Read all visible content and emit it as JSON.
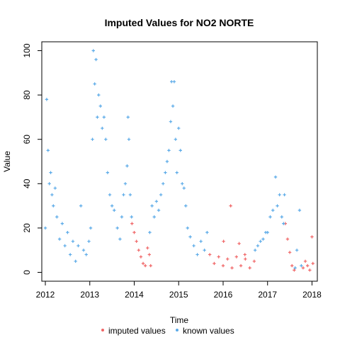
{
  "chart_data": {
    "type": "scatter",
    "title": "Imputed Values for  NO2 NORTE",
    "xlabel": "Time",
    "ylabel": "Value",
    "xlim": [
      2011.92,
      2018.12
    ],
    "ylim": [
      -4,
      104
    ],
    "x_ticks": [
      2012,
      2013,
      2014,
      2015,
      2016,
      2017,
      2018
    ],
    "x_tick_labels": [
      "2012",
      "2013",
      "2014",
      "2015",
      "2016",
      "2017",
      "2018"
    ],
    "y_ticks": [
      0,
      20,
      40,
      60,
      80,
      100
    ],
    "y_tick_labels": [
      "0",
      "20",
      "40",
      "60",
      "80",
      "100"
    ],
    "grid": false,
    "legend_position": "bottom",
    "series": [
      {
        "name": "imputed values",
        "color": "#F06566",
        "marker": "cross",
        "points": [
          [
            2013.95,
            22
          ],
          [
            2014.0,
            18
          ],
          [
            2014.05,
            14
          ],
          [
            2014.1,
            10
          ],
          [
            2014.15,
            7
          ],
          [
            2014.2,
            4
          ],
          [
            2014.25,
            3
          ],
          [
            2014.3,
            11
          ],
          [
            2014.34,
            8
          ],
          [
            2014.37,
            3
          ],
          [
            2015.7,
            8
          ],
          [
            2015.8,
            4
          ],
          [
            2015.9,
            7
          ],
          [
            2016.0,
            3
          ],
          [
            2016.1,
            6
          ],
          [
            2016.2,
            2
          ],
          [
            2016.3,
            7
          ],
          [
            2016.4,
            3
          ],
          [
            2016.5,
            6
          ],
          [
            2016.6,
            2
          ],
          [
            2016.7,
            5
          ],
          [
            2016.01,
            14
          ],
          [
            2016.17,
            30
          ],
          [
            2016.36,
            13
          ],
          [
            2016.49,
            8
          ],
          [
            2017.4,
            22
          ],
          [
            2017.45,
            15
          ],
          [
            2017.5,
            9
          ],
          [
            2017.55,
            3
          ],
          [
            2017.6,
            1
          ],
          [
            2017.8,
            2
          ],
          [
            2017.85,
            5
          ],
          [
            2017.9,
            3
          ],
          [
            2017.95,
            1
          ],
          [
            2018.0,
            16
          ],
          [
            2018.02,
            4
          ]
        ]
      },
      {
        "name": "known values",
        "color": "#5AAAE8",
        "marker": "cross",
        "points": [
          [
            2012.0,
            20
          ],
          [
            2012.03,
            78
          ],
          [
            2012.06,
            55
          ],
          [
            2012.09,
            40
          ],
          [
            2012.12,
            45
          ],
          [
            2012.15,
            35
          ],
          [
            2012.18,
            30
          ],
          [
            2012.22,
            38
          ],
          [
            2012.26,
            25
          ],
          [
            2012.32,
            15
          ],
          [
            2012.38,
            22
          ],
          [
            2012.44,
            12
          ],
          [
            2012.5,
            18
          ],
          [
            2012.56,
            8
          ],
          [
            2012.62,
            14
          ],
          [
            2012.68,
            5
          ],
          [
            2012.74,
            12
          ],
          [
            2012.8,
            30
          ],
          [
            2012.86,
            10
          ],
          [
            2012.92,
            8
          ],
          [
            2012.98,
            14
          ],
          [
            2013.02,
            20
          ],
          [
            2013.06,
            60
          ],
          [
            2013.08,
            100
          ],
          [
            2013.11,
            85
          ],
          [
            2013.14,
            96
          ],
          [
            2013.17,
            70
          ],
          [
            2013.2,
            80
          ],
          [
            2013.24,
            75
          ],
          [
            2013.28,
            65
          ],
          [
            2013.32,
            70
          ],
          [
            2013.36,
            60
          ],
          [
            2013.4,
            45
          ],
          [
            2013.45,
            35
          ],
          [
            2013.5,
            30
          ],
          [
            2013.55,
            28
          ],
          [
            2013.62,
            20
          ],
          [
            2013.68,
            15
          ],
          [
            2013.72,
            25
          ],
          [
            2013.76,
            35
          ],
          [
            2013.8,
            40
          ],
          [
            2013.84,
            48
          ],
          [
            2013.86,
            70
          ],
          [
            2013.88,
            60
          ],
          [
            2013.91,
            35
          ],
          [
            2013.94,
            25
          ],
          [
            2014.35,
            18
          ],
          [
            2014.4,
            30
          ],
          [
            2014.45,
            25
          ],
          [
            2014.5,
            32
          ],
          [
            2014.55,
            28
          ],
          [
            2014.6,
            35
          ],
          [
            2014.65,
            40
          ],
          [
            2014.7,
            45
          ],
          [
            2014.74,
            50
          ],
          [
            2014.78,
            55
          ],
          [
            2014.82,
            68
          ],
          [
            2014.84,
            86
          ],
          [
            2014.87,
            75
          ],
          [
            2014.9,
            86
          ],
          [
            2014.93,
            60
          ],
          [
            2014.96,
            45
          ],
          [
            2015.0,
            65
          ],
          [
            2015.04,
            55
          ],
          [
            2015.08,
            40
          ],
          [
            2015.12,
            38
          ],
          [
            2015.16,
            30
          ],
          [
            2015.2,
            20
          ],
          [
            2015.26,
            16
          ],
          [
            2015.34,
            12
          ],
          [
            2015.42,
            8
          ],
          [
            2015.5,
            14
          ],
          [
            2015.58,
            10
          ],
          [
            2015.64,
            18
          ],
          [
            2016.72,
            10
          ],
          [
            2016.78,
            12
          ],
          [
            2016.84,
            14
          ],
          [
            2016.9,
            15
          ],
          [
            2016.96,
            18
          ],
          [
            2017.0,
            18
          ],
          [
            2017.06,
            25
          ],
          [
            2017.12,
            28
          ],
          [
            2017.18,
            43
          ],
          [
            2017.22,
            30
          ],
          [
            2017.27,
            35
          ],
          [
            2017.32,
            25
          ],
          [
            2017.36,
            22
          ],
          [
            2017.38,
            35
          ],
          [
            2017.62,
            2
          ],
          [
            2017.66,
            10
          ],
          [
            2017.72,
            28
          ],
          [
            2017.76,
            3
          ]
        ]
      }
    ]
  }
}
